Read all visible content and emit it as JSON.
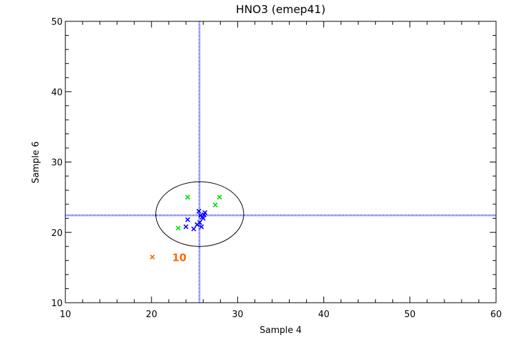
{
  "chart_data": {
    "type": "scatter",
    "title": "HNO3 (emep41)",
    "xlabel": "Sample 4",
    "ylabel": "Sample 6",
    "xlim": [
      10,
      60
    ],
    "ylim": [
      10,
      50
    ],
    "xticks": [
      "10",
      "20",
      "30",
      "40",
      "50",
      "60"
    ],
    "yticks": [
      "10",
      "20",
      "30",
      "40",
      "50"
    ],
    "colors": {
      "blue": "#0000ff",
      "green": "#00e000",
      "orange": "#ff6600",
      "frame": "#000000"
    },
    "reference_lines": {
      "x": 25.5,
      "y": 22.5
    },
    "ellipse": {
      "cx": 25.6,
      "cy": 22.6,
      "rx": 5.1,
      "ry": 4.6
    },
    "series": [
      {
        "color": "#0000ff",
        "points": [
          [
            24.2,
            21.8
          ],
          [
            24.0,
            20.8
          ],
          [
            24.9,
            20.5
          ],
          [
            25.3,
            21.1
          ],
          [
            25.6,
            21.4
          ],
          [
            25.8,
            20.8
          ],
          [
            25.5,
            23.0
          ],
          [
            25.9,
            22.2
          ],
          [
            26.1,
            22.5
          ],
          [
            26.2,
            22.8
          ],
          [
            25.7,
            22.4
          ],
          [
            26.0,
            22.0
          ]
        ]
      },
      {
        "color": "#00e000",
        "points": [
          [
            24.2,
            25.0
          ],
          [
            23.1,
            20.6
          ],
          [
            27.4,
            23.9
          ],
          [
            27.9,
            25.0
          ]
        ]
      },
      {
        "color": "#ff6600",
        "points": [
          [
            20.1,
            16.5
          ]
        ]
      }
    ],
    "annotations": [
      {
        "text": "10",
        "x": 22.4,
        "y": 16.5,
        "color": "#ff6600"
      }
    ]
  }
}
